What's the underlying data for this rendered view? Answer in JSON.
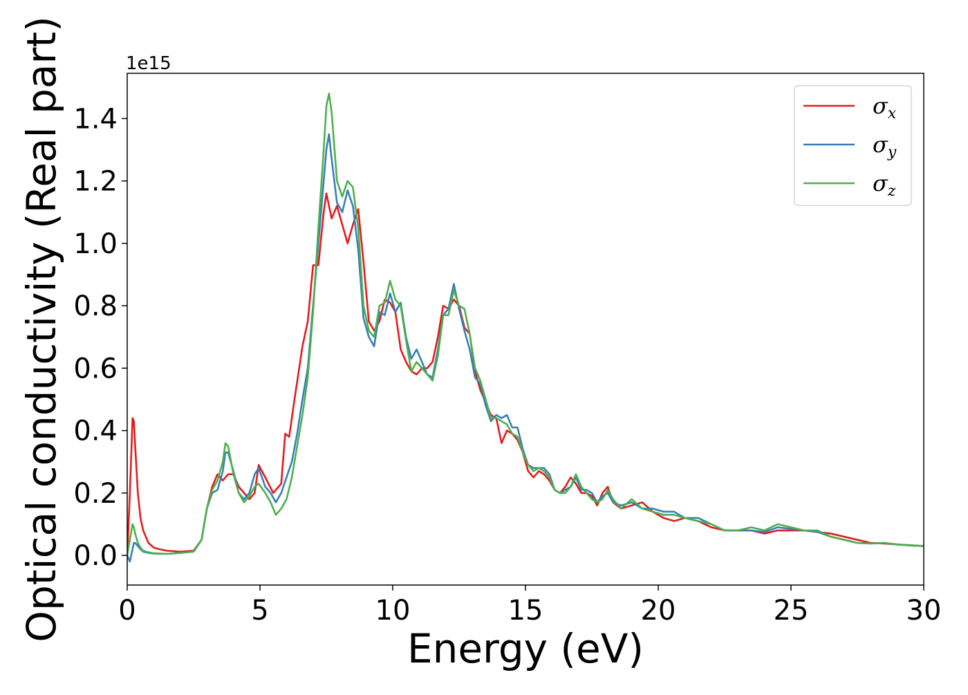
{
  "chart_data": {
    "type": "line",
    "title": "",
    "xlabel": "Energy (eV)",
    "ylabel": "Optical conductivity (Real part)",
    "y_offset_label": "1e15",
    "xlim": [
      0,
      30
    ],
    "ylim": [
      -0.095,
      1.545
    ],
    "xticks": [
      0,
      5,
      10,
      15,
      20,
      25,
      30
    ],
    "xtick_labels": [
      "0",
      "5",
      "10",
      "15",
      "20",
      "25",
      "30"
    ],
    "yticks": [
      0.0,
      0.2,
      0.4,
      0.6,
      0.8,
      1.0,
      1.2,
      1.4
    ],
    "ytick_labels": [
      "0.0",
      "0.2",
      "0.4",
      "0.6",
      "0.8",
      "1.0",
      "1.2",
      "1.4"
    ],
    "grid": false,
    "legend_position": "top-right",
    "series": [
      {
        "name": "σx",
        "legend_symbol": "σ",
        "legend_subscript": "x",
        "color": "#e41a1c",
        "x": [
          0,
          0.1,
          0.2,
          0.25,
          0.3,
          0.4,
          0.5,
          0.6,
          0.8,
          1.0,
          1.2,
          1.5,
          2.0,
          2.5,
          2.8,
          3.0,
          3.2,
          3.4,
          3.6,
          3.8,
          4.0,
          4.2,
          4.4,
          4.6,
          4.8,
          4.95,
          5.2,
          5.5,
          5.8,
          5.95,
          6.1,
          6.3,
          6.6,
          6.8,
          7.0,
          7.2,
          7.4,
          7.5,
          7.7,
          7.9,
          8.1,
          8.3,
          8.5,
          8.7,
          8.9,
          9.1,
          9.3,
          9.5,
          9.7,
          9.9,
          10.1,
          10.3,
          10.5,
          10.7,
          10.9,
          11.1,
          11.3,
          11.5,
          11.7,
          11.9,
          12.1,
          12.3,
          12.5,
          12.7,
          12.9,
          13.1,
          13.3,
          13.5,
          13.7,
          13.9,
          14.1,
          14.3,
          14.5,
          14.7,
          14.9,
          15.1,
          15.3,
          15.5,
          15.7,
          15.9,
          16.1,
          16.3,
          16.5,
          16.7,
          16.9,
          17.1,
          17.3,
          17.5,
          17.7,
          17.9,
          18.1,
          18.3,
          18.6,
          19.0,
          19.4,
          19.8,
          20.2,
          20.6,
          21.0,
          21.5,
          22.0,
          22.5,
          23.0,
          23.5,
          24.0,
          24.5,
          25.0,
          25.5,
          26.0,
          26.5,
          27.0,
          27.5,
          28.0,
          28.5,
          29.0,
          29.5,
          30.0
        ],
        "y": [
          0.0,
          0.2,
          0.44,
          0.43,
          0.35,
          0.2,
          0.12,
          0.08,
          0.04,
          0.025,
          0.02,
          0.015,
          0.012,
          0.015,
          0.05,
          0.15,
          0.22,
          0.26,
          0.24,
          0.26,
          0.26,
          0.22,
          0.2,
          0.18,
          0.2,
          0.29,
          0.25,
          0.2,
          0.23,
          0.39,
          0.38,
          0.5,
          0.67,
          0.75,
          0.93,
          0.93,
          1.1,
          1.16,
          1.08,
          1.12,
          1.06,
          1.0,
          1.06,
          1.11,
          0.94,
          0.75,
          0.72,
          0.75,
          0.82,
          0.81,
          0.78,
          0.66,
          0.62,
          0.59,
          0.58,
          0.6,
          0.6,
          0.62,
          0.7,
          0.8,
          0.79,
          0.82,
          0.8,
          0.73,
          0.71,
          0.59,
          0.53,
          0.49,
          0.45,
          0.44,
          0.36,
          0.4,
          0.39,
          0.37,
          0.33,
          0.27,
          0.25,
          0.27,
          0.26,
          0.24,
          0.21,
          0.2,
          0.22,
          0.25,
          0.23,
          0.2,
          0.2,
          0.19,
          0.16,
          0.2,
          0.22,
          0.17,
          0.15,
          0.16,
          0.17,
          0.14,
          0.12,
          0.11,
          0.12,
          0.11,
          0.09,
          0.08,
          0.08,
          0.08,
          0.07,
          0.08,
          0.08,
          0.08,
          0.075,
          0.07,
          0.06,
          0.05,
          0.04,
          0.038,
          0.035,
          0.032,
          0.03
        ]
      },
      {
        "name": "σy",
        "legend_symbol": "σ",
        "legend_subscript": "y",
        "color": "#377eb8",
        "x": [
          0,
          0.1,
          0.2,
          0.25,
          0.3,
          0.4,
          0.5,
          0.6,
          0.8,
          1.0,
          1.2,
          1.5,
          2.0,
          2.5,
          2.8,
          3.0,
          3.2,
          3.4,
          3.6,
          3.7,
          3.8,
          4.0,
          4.2,
          4.4,
          4.6,
          4.8,
          4.95,
          5.2,
          5.4,
          5.6,
          5.8,
          6.0,
          6.2,
          6.4,
          6.6,
          6.8,
          7.0,
          7.2,
          7.4,
          7.5,
          7.6,
          7.7,
          7.9,
          8.1,
          8.3,
          8.5,
          8.7,
          8.9,
          9.1,
          9.3,
          9.5,
          9.7,
          9.9,
          10.1,
          10.3,
          10.5,
          10.7,
          10.9,
          11.1,
          11.3,
          11.5,
          11.7,
          11.9,
          12.1,
          12.3,
          12.5,
          12.7,
          12.9,
          13.1,
          13.3,
          13.5,
          13.7,
          13.9,
          14.1,
          14.3,
          14.5,
          14.7,
          14.9,
          15.1,
          15.3,
          15.5,
          15.7,
          15.9,
          16.1,
          16.3,
          16.5,
          16.7,
          16.9,
          17.1,
          17.3,
          17.5,
          17.7,
          17.9,
          18.1,
          18.3,
          18.6,
          19.0,
          19.4,
          19.8,
          20.2,
          20.6,
          21.0,
          21.5,
          22.0,
          22.5,
          23.0,
          23.5,
          24.0,
          24.5,
          25.0,
          25.5,
          26.0,
          26.5,
          27.0,
          27.5,
          28.0,
          28.5,
          29.0,
          29.5,
          30.0
        ],
        "y": [
          0.0,
          -0.02,
          0.02,
          0.04,
          0.04,
          0.03,
          0.02,
          0.012,
          0.008,
          0.006,
          0.005,
          0.005,
          0.008,
          0.012,
          0.05,
          0.15,
          0.2,
          0.21,
          0.27,
          0.33,
          0.33,
          0.27,
          0.2,
          0.18,
          0.2,
          0.26,
          0.28,
          0.22,
          0.2,
          0.17,
          0.2,
          0.25,
          0.3,
          0.39,
          0.5,
          0.6,
          0.8,
          1.0,
          1.2,
          1.3,
          1.35,
          1.27,
          1.13,
          1.1,
          1.17,
          1.12,
          0.98,
          0.76,
          0.7,
          0.67,
          0.78,
          0.77,
          0.84,
          0.78,
          0.81,
          0.7,
          0.63,
          0.66,
          0.62,
          0.58,
          0.57,
          0.66,
          0.77,
          0.79,
          0.87,
          0.79,
          0.72,
          0.66,
          0.57,
          0.55,
          0.48,
          0.43,
          0.45,
          0.44,
          0.45,
          0.41,
          0.41,
          0.34,
          0.29,
          0.28,
          0.28,
          0.28,
          0.26,
          0.21,
          0.2,
          0.21,
          0.22,
          0.25,
          0.21,
          0.21,
          0.2,
          0.17,
          0.19,
          0.2,
          0.17,
          0.16,
          0.17,
          0.15,
          0.15,
          0.14,
          0.14,
          0.12,
          0.12,
          0.1,
          0.08,
          0.08,
          0.08,
          0.075,
          0.09,
          0.085,
          0.08,
          0.075,
          0.06,
          0.05,
          0.04,
          0.038,
          0.04,
          0.035,
          0.032,
          0.03
        ]
      },
      {
        "name": "σz",
        "legend_symbol": "σ",
        "legend_subscript": "z",
        "color": "#4daf4a",
        "x": [
          0,
          0.1,
          0.2,
          0.25,
          0.3,
          0.4,
          0.5,
          0.6,
          0.8,
          1.0,
          1.2,
          1.5,
          2.0,
          2.5,
          2.8,
          3.0,
          3.2,
          3.4,
          3.6,
          3.7,
          3.8,
          4.0,
          4.2,
          4.4,
          4.6,
          4.8,
          4.95,
          5.2,
          5.4,
          5.6,
          5.8,
          6.0,
          6.2,
          6.4,
          6.6,
          6.8,
          7.0,
          7.2,
          7.4,
          7.5,
          7.6,
          7.7,
          7.9,
          8.1,
          8.3,
          8.5,
          8.7,
          8.9,
          9.1,
          9.3,
          9.5,
          9.7,
          9.9,
          10.1,
          10.3,
          10.5,
          10.7,
          10.9,
          11.1,
          11.3,
          11.5,
          11.7,
          11.9,
          12.1,
          12.3,
          12.5,
          12.7,
          12.9,
          13.1,
          13.3,
          13.5,
          13.7,
          13.9,
          14.1,
          14.3,
          14.5,
          14.7,
          14.9,
          15.1,
          15.3,
          15.5,
          15.7,
          15.9,
          16.1,
          16.3,
          16.5,
          16.7,
          16.9,
          17.1,
          17.3,
          17.5,
          17.7,
          17.9,
          18.1,
          18.3,
          18.6,
          19.0,
          19.4,
          19.8,
          20.2,
          20.6,
          21.0,
          21.5,
          22.0,
          22.5,
          23.0,
          23.5,
          24.0,
          24.5,
          25.0,
          25.5,
          26.0,
          26.5,
          27.0,
          27.5,
          28.0,
          28.5,
          29.0,
          29.5,
          30.0
        ],
        "y": [
          0.0,
          0.05,
          0.1,
          0.09,
          0.07,
          0.04,
          0.025,
          0.015,
          0.01,
          0.007,
          0.006,
          0.005,
          0.008,
          0.012,
          0.05,
          0.15,
          0.21,
          0.24,
          0.3,
          0.36,
          0.35,
          0.26,
          0.2,
          0.17,
          0.19,
          0.22,
          0.23,
          0.2,
          0.17,
          0.13,
          0.15,
          0.18,
          0.25,
          0.35,
          0.45,
          0.57,
          0.78,
          1.05,
          1.3,
          1.44,
          1.48,
          1.42,
          1.2,
          1.15,
          1.2,
          1.18,
          1.05,
          0.8,
          0.72,
          0.7,
          0.8,
          0.81,
          0.88,
          0.82,
          0.8,
          0.69,
          0.59,
          0.62,
          0.6,
          0.58,
          0.56,
          0.64,
          0.77,
          0.77,
          0.85,
          0.8,
          0.79,
          0.71,
          0.6,
          0.56,
          0.5,
          0.44,
          0.44,
          0.43,
          0.42,
          0.39,
          0.38,
          0.33,
          0.29,
          0.27,
          0.28,
          0.27,
          0.25,
          0.21,
          0.2,
          0.2,
          0.22,
          0.26,
          0.22,
          0.2,
          0.18,
          0.17,
          0.18,
          0.21,
          0.18,
          0.15,
          0.18,
          0.15,
          0.14,
          0.13,
          0.13,
          0.12,
          0.11,
          0.1,
          0.08,
          0.08,
          0.09,
          0.08,
          0.1,
          0.09,
          0.08,
          0.08,
          0.06,
          0.05,
          0.04,
          0.038,
          0.04,
          0.035,
          0.033,
          0.03
        ]
      }
    ]
  }
}
